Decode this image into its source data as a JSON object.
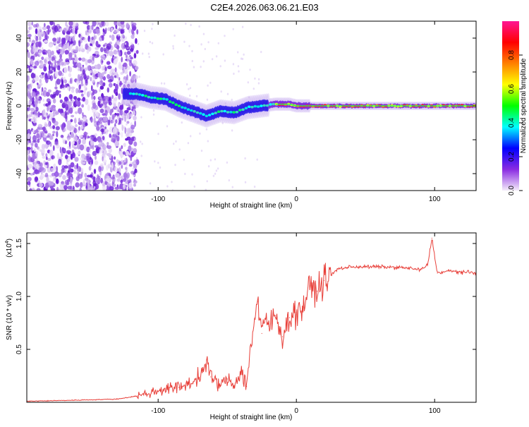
{
  "title": "C2E4.2026.063.06.21.E03",
  "chart_data": [
    {
      "type": "heatmap",
      "title": "C2E4.2026.063.06.21.E03",
      "xlabel": "Height of straight line (km)",
      "ylabel": "Frequency (Hz)",
      "xlim": [
        -195,
        130
      ],
      "ylim": [
        -50,
        50
      ],
      "xticks": [
        -100,
        0,
        100
      ],
      "yticks": [
        -40,
        -20,
        0,
        20,
        40
      ],
      "ridge": {
        "x": [
          -125,
          -115,
          -105,
          -95,
          -85,
          -75,
          -65,
          -55,
          -45,
          -35,
          -25,
          -15,
          -5,
          0,
          10,
          30,
          60,
          90,
          130
        ],
        "y": [
          7,
          7,
          5,
          4,
          0,
          -3,
          -6,
          -3,
          -4,
          -1,
          0,
          1,
          1,
          0,
          0,
          0,
          0,
          0,
          0
        ]
      },
      "colorbar": {
        "label": "Normalized spectral amplitude",
        "range": [
          0,
          1
        ],
        "ticks": [
          "0.0",
          "0.2",
          "0.4",
          "0.6",
          "0.8"
        ],
        "tick_values": [
          0.0,
          0.2,
          0.4,
          0.6,
          0.8
        ],
        "colors": [
          "#f4ecfa",
          "#8a2be2",
          "#0000ff",
          "#00ffff",
          "#00ff00",
          "#ffff00",
          "#ff8000",
          "#ff0000",
          "#ff1493"
        ]
      }
    },
    {
      "type": "line",
      "title": "",
      "xlabel": "Height of straight line (km)",
      "ylabel": "SNR (10 * v/v)",
      "scale_label": "(x10^4)",
      "scale_base": "(x10",
      "scale_exp": "4",
      "scale_close": ")",
      "xlim": [
        -195,
        130
      ],
      "ylim": [
        0,
        1.6
      ],
      "xticks": [
        -100,
        0,
        100
      ],
      "yticks": [
        0.5,
        1.0,
        1.5
      ],
      "ytick_labels": [
        "0.5",
        "1.0",
        "1.5"
      ],
      "color": "#e8403a",
      "series": [
        {
          "name": "SNR",
          "x": [
            -195,
            -160,
            -130,
            -115,
            -105,
            -95,
            -85,
            -75,
            -68,
            -65,
            -62,
            -55,
            -50,
            -45,
            -40,
            -36,
            -33,
            -30,
            -28,
            -25,
            -22,
            -20,
            -15,
            -10,
            -5,
            0,
            5,
            10,
            15,
            20,
            25,
            30,
            40,
            60,
            80,
            90,
            95,
            98,
            102,
            110,
            120,
            130
          ],
          "y": [
            0.01,
            0.02,
            0.03,
            0.06,
            0.09,
            0.13,
            0.14,
            0.19,
            0.28,
            0.4,
            0.24,
            0.16,
            0.22,
            0.16,
            0.3,
            0.15,
            0.55,
            0.8,
            0.95,
            0.65,
            0.8,
            0.72,
            0.82,
            0.62,
            0.8,
            0.85,
            0.9,
            1.1,
            1.05,
            1.15,
            1.2,
            1.26,
            1.28,
            1.28,
            1.27,
            1.25,
            1.3,
            1.55,
            1.22,
            1.24,
            1.23,
            1.22
          ]
        }
      ]
    }
  ]
}
